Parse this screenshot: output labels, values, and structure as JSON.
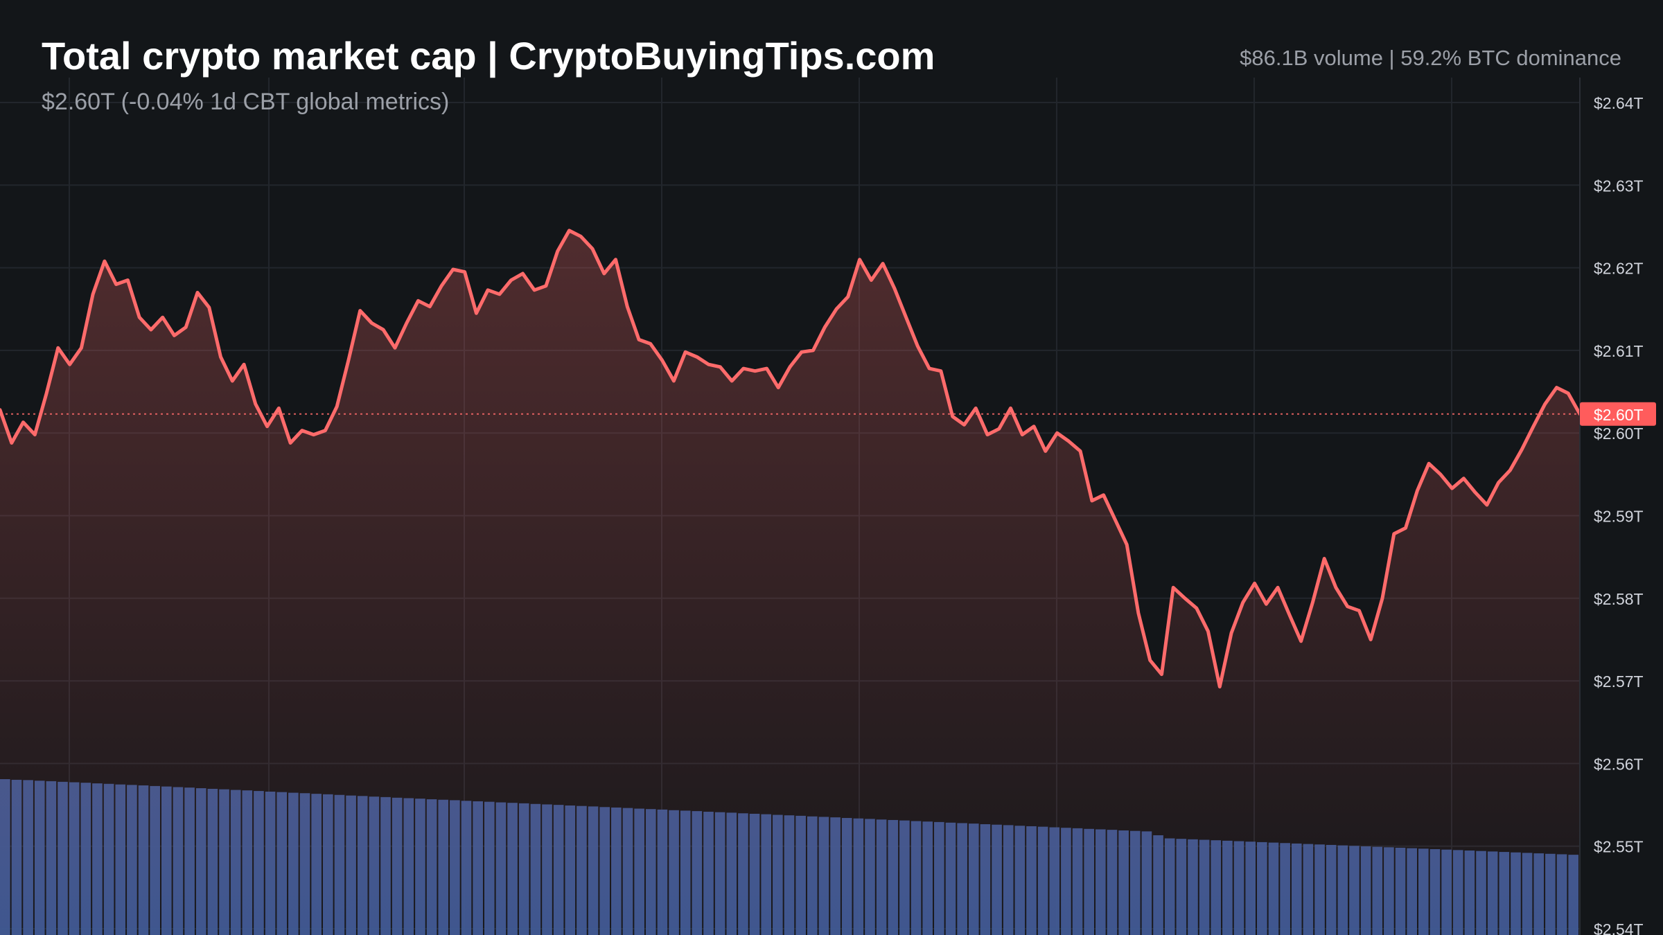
{
  "header": {
    "title": "Total crypto market cap | CryptoBuyingTips.com",
    "subtitle": "$2.60T (-0.04% 1d CBT global metrics)",
    "summary": "$86.1B volume | 59.2% BTC dominance"
  },
  "colors": {
    "background": "#131619",
    "line": "#ff6b6b",
    "price_label_bg": "#ff5c5c",
    "volume": "#3d5a96",
    "grid": "#22262c",
    "axis_text": "#d1d4dc"
  },
  "chart_data": {
    "type": "line",
    "title": "Total crypto market cap | CryptoBuyingTips.com",
    "subtitle": "$2.60T (-0.04% 1d CBT global metrics)",
    "ylim": [
      2.54,
      2.64
    ],
    "y_ticks": [
      "$2.64T",
      "$2.63T",
      "$2.62T",
      "$2.61T",
      "$2.60T",
      "$2.59T",
      "$2.58T",
      "$2.57T",
      "$2.56T",
      "$2.55T",
      "$2.54T"
    ],
    "y_tick_values": [
      2.64,
      2.63,
      2.62,
      2.61,
      2.6,
      2.59,
      2.58,
      2.57,
      2.56,
      2.55,
      2.54
    ],
    "grid": true,
    "last_value_label": "$2.60T",
    "last_value": 2.6023,
    "series": [
      {
        "values": [
          2.6028,
          2.5988,
          2.6013,
          2.5998,
          2.6048,
          2.6103,
          2.6083,
          2.6103,
          2.6168,
          2.6208,
          2.618,
          2.6185,
          2.614,
          2.6125,
          2.614,
          2.6118,
          2.6128,
          2.617,
          2.6152,
          2.6092,
          2.6063,
          2.6083,
          2.6035,
          2.6008,
          2.603,
          2.5988,
          2.6003,
          2.5998,
          2.6003,
          2.6032,
          2.6088,
          2.6148,
          2.6133,
          2.6125,
          2.6103,
          2.6133,
          2.616,
          2.6153,
          2.6178,
          2.6198,
          2.6195,
          2.6145,
          2.6173,
          2.6168,
          2.6185,
          2.6193,
          2.6173,
          2.6178,
          2.622,
          2.6245,
          2.6238,
          2.6223,
          2.6193,
          2.621,
          2.6153,
          2.6113,
          2.6108,
          2.6088,
          2.6063,
          2.6098,
          2.6092,
          2.6083,
          2.608,
          2.6063,
          2.6078,
          2.6075,
          2.6078,
          2.6055,
          2.608,
          2.6098,
          2.61,
          2.6128,
          2.615,
          2.6165,
          2.621,
          2.6185,
          2.6205,
          2.6175,
          2.614,
          2.6105,
          2.6078,
          2.6075,
          2.602,
          2.601,
          2.603,
          2.5998,
          2.6005,
          2.603,
          2.5998,
          2.6008,
          2.5978,
          2.6,
          2.599,
          2.5978,
          2.5918,
          2.5925,
          2.5895,
          2.5865,
          2.5782,
          2.5725,
          2.5708,
          2.5813,
          2.58,
          2.5788,
          2.576,
          2.5693,
          2.5758,
          2.5795,
          2.5818,
          2.5793,
          2.5813,
          2.578,
          2.5748,
          2.5795,
          2.5848,
          2.5813,
          2.579,
          2.5785,
          2.575,
          2.58,
          2.5878,
          2.5885,
          2.593,
          2.5963,
          2.595,
          2.5933,
          2.5945,
          2.5928,
          2.5913,
          2.594,
          2.5955,
          2.598,
          2.6008,
          2.6035,
          2.6055,
          2.6048,
          2.6023
        ]
      }
    ],
    "volume_panel_values": [
      1.0,
      0.996,
      0.994,
      0.99,
      0.987,
      0.983,
      0.98,
      0.977,
      0.973,
      0.97,
      0.966,
      0.963,
      0.96,
      0.956,
      0.953,
      0.949,
      0.946,
      0.942,
      0.938,
      0.935,
      0.931,
      0.928,
      0.924,
      0.92,
      0.917,
      0.913,
      0.91,
      0.906,
      0.903,
      0.899,
      0.895,
      0.892,
      0.888,
      0.885,
      0.881,
      0.878,
      0.875,
      0.871,
      0.868,
      0.865,
      0.861,
      0.858,
      0.855,
      0.851,
      0.848,
      0.845,
      0.841,
      0.838,
      0.835,
      0.831,
      0.828,
      0.825,
      0.821,
      0.818,
      0.815,
      0.811,
      0.808,
      0.805,
      0.801,
      0.798,
      0.795,
      0.791,
      0.788,
      0.785,
      0.781,
      0.778,
      0.775,
      0.771,
      0.768,
      0.765,
      0.761,
      0.758,
      0.755,
      0.751,
      0.748,
      0.745,
      0.741,
      0.738,
      0.735,
      0.731,
      0.728,
      0.725,
      0.721,
      0.718,
      0.715,
      0.711,
      0.708,
      0.705,
      0.701,
      0.698,
      0.695,
      0.691,
      0.688,
      0.685,
      0.681,
      0.678,
      0.675,
      0.671,
      0.668,
      0.665,
      0.64,
      0.62,
      0.617,
      0.614,
      0.611,
      0.608,
      0.605,
      0.602,
      0.599,
      0.596,
      0.593,
      0.59,
      0.587,
      0.584,
      0.581,
      0.578,
      0.575,
      0.572,
      0.569,
      0.566,
      0.563,
      0.56,
      0.557,
      0.554,
      0.551,
      0.548,
      0.545,
      0.542,
      0.539,
      0.536,
      0.533,
      0.53,
      0.527,
      0.524,
      0.521,
      0.518,
      0.515
    ]
  }
}
